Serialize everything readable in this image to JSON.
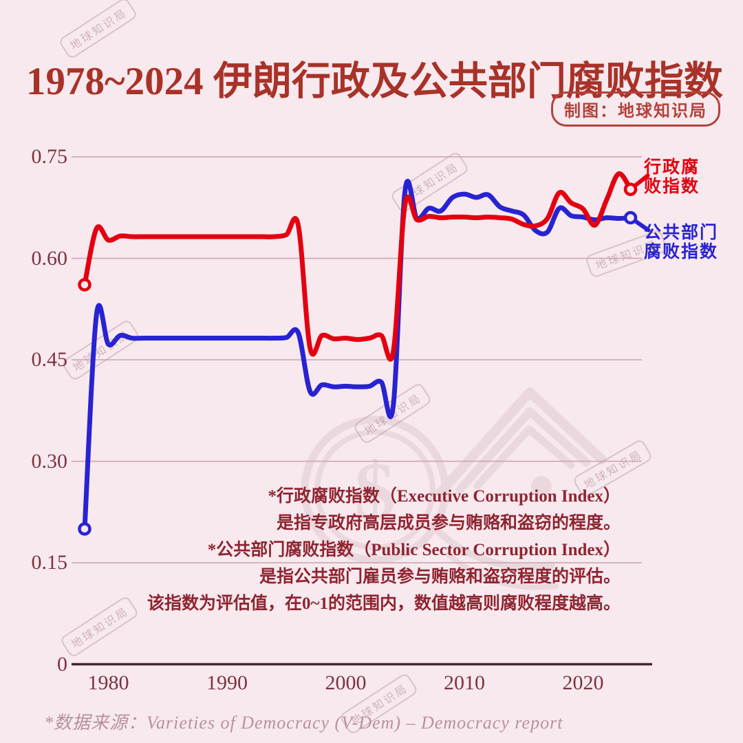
{
  "title": "1978~2024 伊朗行政及公共部门腐败指数",
  "credit_badge": "制图：地球知识局",
  "watermark": {
    "stamp": "地球知识局"
  },
  "legend": {
    "executive": {
      "lines": [
        "行政腐",
        "败指数"
      ],
      "leader_offset": [
        25,
        -20
      ]
    },
    "public": {
      "lines": [
        "公共部门",
        "腐败指数"
      ],
      "leader_offset": [
        26,
        18
      ]
    }
  },
  "annotations": [
    "*行政腐败指数（Executive Corruption Index）",
    "是指专政府高层成员参与贿赂和盗窃的程度。",
    "*公共部门腐败指数（Public Sector Corruption Index）",
    "是指公共部门雇员参与贿赂和盗窃程度的评估。",
    "该指数为评估值，在0~1的范围内，数值越高则腐败程度越高。"
  ],
  "source": "*数据来源：Varieties of Democracy (V-Dem) – Democracy report",
  "colors": {
    "background": "#f7e9ee",
    "title": "#a93228",
    "executive": "#e30010",
    "public": "#2823d2",
    "grid": "#c9a2ab",
    "axis": "#43262e",
    "tick_text": "#7c3340"
  },
  "chart_data": {
    "type": "line",
    "title": "1978~2024 伊朗行政及公共部门腐败指数",
    "xlabel": "",
    "ylabel": "",
    "ylim": [
      0,
      0.75
    ],
    "grid": "horizontal",
    "legend_position": "right-of-line-ends",
    "y_ticks": [
      0,
      0.15,
      0.3,
      0.45,
      0.6,
      0.75
    ],
    "y_tick_labels": [
      "0",
      "0.15",
      "0.30",
      "0.45",
      "0.60",
      "0.75"
    ],
    "x_ticks": [
      1980,
      1990,
      2000,
      2010,
      2020
    ],
    "x": [
      1978,
      1979,
      1980,
      1981,
      1982,
      1983,
      1984,
      1985,
      1986,
      1987,
      1988,
      1989,
      1990,
      1991,
      1992,
      1993,
      1994,
      1995,
      1996,
      1997,
      1998,
      1999,
      2000,
      2001,
      2002,
      2003,
      2004,
      2005,
      2006,
      2007,
      2008,
      2009,
      2010,
      2011,
      2012,
      2013,
      2014,
      2015,
      2016,
      2017,
      2018,
      2019,
      2020,
      2021,
      2022,
      2023,
      2024
    ],
    "series": [
      {
        "name": "行政腐败指数 (Executive Corruption Index)",
        "color": "#e30010",
        "values": [
          0.561,
          0.644,
          0.627,
          0.633,
          0.632,
          0.632,
          0.632,
          0.632,
          0.632,
          0.632,
          0.632,
          0.632,
          0.632,
          0.632,
          0.632,
          0.632,
          0.632,
          0.635,
          0.649,
          0.467,
          0.486,
          0.481,
          0.482,
          0.48,
          0.482,
          0.486,
          0.461,
          0.68,
          0.657,
          0.662,
          0.66,
          0.661,
          0.661,
          0.66,
          0.661,
          0.66,
          0.658,
          0.65,
          0.648,
          0.659,
          0.697,
          0.682,
          0.673,
          0.649,
          0.687,
          0.725,
          0.702
        ]
      },
      {
        "name": "公共部门腐败指数 (Public Sector Corruption Index)",
        "color": "#2823d2",
        "values": [
          0.2,
          0.517,
          0.473,
          0.486,
          0.482,
          0.482,
          0.482,
          0.482,
          0.482,
          0.482,
          0.482,
          0.482,
          0.482,
          0.482,
          0.482,
          0.482,
          0.482,
          0.483,
          0.49,
          0.403,
          0.413,
          0.41,
          0.411,
          0.41,
          0.411,
          0.417,
          0.381,
          0.7,
          0.659,
          0.674,
          0.67,
          0.69,
          0.695,
          0.69,
          0.694,
          0.676,
          0.67,
          0.664,
          0.641,
          0.639,
          0.674,
          0.663,
          0.661,
          0.657,
          0.66,
          0.659,
          0.66
        ]
      }
    ]
  }
}
